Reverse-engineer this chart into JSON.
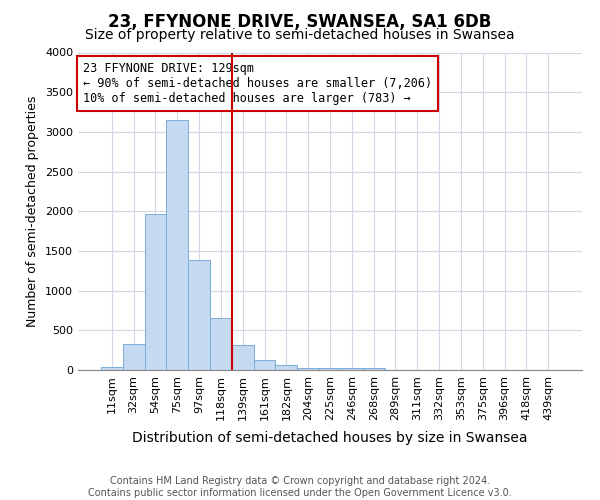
{
  "title": "23, FFYNONE DRIVE, SWANSEA, SA1 6DB",
  "subtitle": "Size of property relative to semi-detached houses in Swansea",
  "xlabel": "Distribution of semi-detached houses by size in Swansea",
  "ylabel": "Number of semi-detached properties",
  "footer_line1": "Contains HM Land Registry data © Crown copyright and database right 2024.",
  "footer_line2": "Contains public sector information licensed under the Open Government Licence v3.0.",
  "categories": [
    "11sqm",
    "32sqm",
    "54sqm",
    "75sqm",
    "97sqm",
    "118sqm",
    "139sqm",
    "161sqm",
    "182sqm",
    "204sqm",
    "225sqm",
    "246sqm",
    "268sqm",
    "289sqm",
    "311sqm",
    "332sqm",
    "353sqm",
    "375sqm",
    "396sqm",
    "418sqm",
    "439sqm"
  ],
  "values": [
    40,
    330,
    1970,
    3150,
    1380,
    650,
    310,
    130,
    60,
    30,
    25,
    25,
    20,
    0,
    0,
    0,
    0,
    0,
    0,
    0,
    0
  ],
  "bar_color": "#c5d9f0",
  "bar_edge_color": "#7aadd4",
  "background_color": "#ffffff",
  "plot_bg_color": "#ffffff",
  "ylim": [
    0,
    4000
  ],
  "yticks": [
    0,
    500,
    1000,
    1500,
    2000,
    2500,
    3000,
    3500,
    4000
  ],
  "property_bin_index": 5.5,
  "annotation_line1": "23 FFYNONE DRIVE: 129sqm",
  "annotation_line2": "← 90% of semi-detached houses are smaller (7,206)",
  "annotation_line3": "10% of semi-detached houses are larger (783) →",
  "vline_color": "#cc0000",
  "annotation_box_edge_color": "#cc0000",
  "annotation_box_face_color": "#ffffff",
  "grid_color": "#d0d8e8",
  "title_fontsize": 12,
  "subtitle_fontsize": 10,
  "xlabel_fontsize": 10,
  "ylabel_fontsize": 9,
  "tick_fontsize": 8,
  "annotation_fontsize": 8.5,
  "footer_fontsize": 7
}
